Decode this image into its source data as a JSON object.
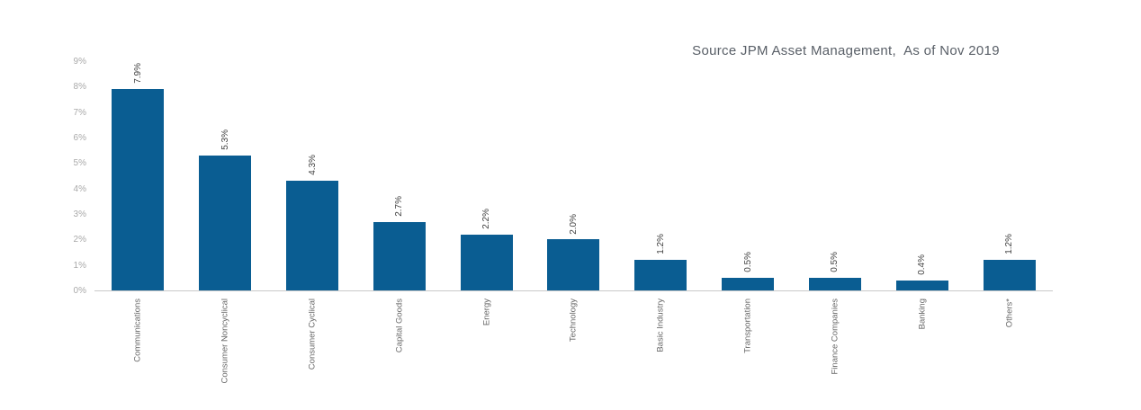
{
  "title": "Source JPM Asset Management,  As of Nov 2019",
  "chart_data": {
    "type": "bar",
    "categories": [
      "Communications",
      "Consumer Noncyclical",
      "Consumer Cyclical",
      "Capital Goods",
      "Energy",
      "Technology",
      "Basic Industry",
      "Transportation",
      "Finance Companies",
      "Banking",
      "Others*"
    ],
    "values": [
      7.9,
      5.3,
      4.3,
      2.7,
      2.2,
      2.0,
      1.2,
      0.5,
      0.5,
      0.4,
      1.2
    ],
    "value_labels": [
      "7.9%",
      "5.3%",
      "4.3%",
      "2.7%",
      "2.2%",
      "2.0%",
      "1.2%",
      "0.5%",
      "0.5%",
      "0.4%",
      "1.2%"
    ],
    "ylabel": "",
    "xlabel": "",
    "ylim": [
      0,
      9
    ],
    "yticks": [
      "0%",
      "1%",
      "2%",
      "3%",
      "4%",
      "5%",
      "6%",
      "7%",
      "8%",
      "9%"
    ],
    "grid": false,
    "legend": null,
    "bar_color": "#0a5d92",
    "axis_line_color": "#c9c9c9",
    "tick_label_color": "#a9a9a9",
    "value_label_color": "#404040",
    "category_label_color": "#666666",
    "title_color": "#5a6068"
  }
}
